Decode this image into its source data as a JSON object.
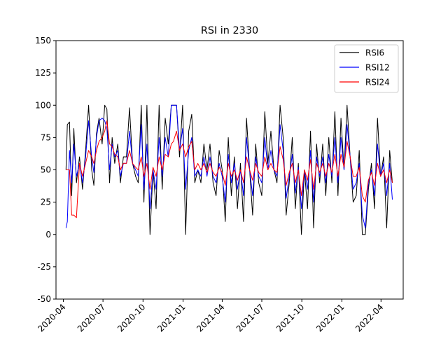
{
  "chart_data": {
    "type": "line",
    "title": "RSI in 2330",
    "xlabel": "",
    "ylabel": "",
    "ylim": [
      -50,
      150
    ],
    "xlim": [
      "2020-03-15",
      "2022-05-22"
    ],
    "yticks": [
      -50,
      -25,
      0,
      25,
      50,
      75,
      100,
      125,
      150
    ],
    "xticks": [
      {
        "date": "2020-04-01",
        "label": "2020-04"
      },
      {
        "date": "2020-07-01",
        "label": "2020-07"
      },
      {
        "date": "2020-10-01",
        "label": "2020-10"
      },
      {
        "date": "2021-01-01",
        "label": "2021-01"
      },
      {
        "date": "2021-04-01",
        "label": "2021-04"
      },
      {
        "date": "2021-07-01",
        "label": "2021-07"
      },
      {
        "date": "2021-10-01",
        "label": "2021-10"
      },
      {
        "date": "2022-01-01",
        "label": "2022-01"
      },
      {
        "date": "2022-04-01",
        "label": "2022-04"
      }
    ],
    "legend_position": "top-right",
    "grid": false,
    "series": [
      {
        "name": "RSI6",
        "color": "#000000",
        "x": [
          "2020-04-07",
          "2020-04-10",
          "2020-04-15",
          "2020-04-20",
          "2020-04-25",
          "2020-05-01",
          "2020-05-08",
          "2020-05-15",
          "2020-05-22",
          "2020-05-29",
          "2020-06-05",
          "2020-06-10",
          "2020-06-16",
          "2020-06-22",
          "2020-06-29",
          "2020-07-05",
          "2020-07-10",
          "2020-07-16",
          "2020-07-22",
          "2020-07-28",
          "2020-08-04",
          "2020-08-10",
          "2020-08-17",
          "2020-08-24",
          "2020-08-31",
          "2020-09-07",
          "2020-09-14",
          "2020-09-20",
          "2020-09-27",
          "2020-10-03",
          "2020-10-10",
          "2020-10-17",
          "2020-10-24",
          "2020-10-31",
          "2020-11-07",
          "2020-11-14",
          "2020-11-21",
          "2020-11-28",
          "2020-12-05",
          "2020-12-10",
          "2020-12-17",
          "2020-12-24",
          "2020-12-31",
          "2021-01-07",
          "2021-01-14",
          "2021-01-21",
          "2021-01-28",
          "2021-02-04",
          "2021-02-11",
          "2021-02-18",
          "2021-02-25",
          "2021-03-04",
          "2021-03-11",
          "2021-03-18",
          "2021-03-25",
          "2021-04-01",
          "2021-04-08",
          "2021-04-15",
          "2021-04-22",
          "2021-04-29",
          "2021-05-06",
          "2021-05-13",
          "2021-05-20",
          "2021-05-27",
          "2021-06-03",
          "2021-06-10",
          "2021-06-17",
          "2021-06-24",
          "2021-07-01",
          "2021-07-08",
          "2021-07-15",
          "2021-07-22",
          "2021-07-29",
          "2021-08-05",
          "2021-08-12",
          "2021-08-19",
          "2021-08-26",
          "2021-09-02",
          "2021-09-09",
          "2021-09-16",
          "2021-09-23",
          "2021-09-30",
          "2021-10-07",
          "2021-10-14",
          "2021-10-21",
          "2021-10-28",
          "2021-11-04",
          "2021-11-11",
          "2021-11-18",
          "2021-11-25",
          "2021-12-02",
          "2021-12-09",
          "2021-12-16",
          "2021-12-23",
          "2021-12-30",
          "2022-01-06",
          "2022-01-13",
          "2022-01-20",
          "2022-01-27",
          "2022-02-03",
          "2022-02-10",
          "2022-02-17",
          "2022-02-24",
          "2022-03-03",
          "2022-03-10",
          "2022-03-17",
          "2022-03-24",
          "2022-03-31",
          "2022-04-07",
          "2022-04-14",
          "2022-04-21",
          "2022-04-27"
        ],
        "values": [
          50,
          85,
          87,
          30,
          82,
          40,
          60,
          35,
          65,
          100,
          50,
          38,
          78,
          90,
          70,
          100,
          97,
          40,
          75,
          55,
          70,
          40,
          60,
          60,
          98,
          55,
          45,
          40,
          100,
          25,
          100,
          0,
          50,
          20,
          100,
          35,
          90,
          70,
          100,
          100,
          100,
          60,
          100,
          0,
          80,
          93,
          40,
          50,
          40,
          70,
          50,
          70,
          40,
          30,
          65,
          50,
          10,
          75,
          30,
          60,
          20,
          55,
          10,
          90,
          50,
          15,
          70,
          40,
          30,
          95,
          55,
          80,
          50,
          40,
          100,
          75,
          15,
          40,
          75,
          20,
          55,
          0,
          50,
          20,
          80,
          5,
          70,
          40,
          70,
          30,
          75,
          40,
          95,
          30,
          90,
          50,
          100,
          60,
          25,
          30,
          65,
          0,
          0,
          35,
          55,
          20,
          90,
          45,
          60,
          5,
          65,
          40
        ]
      },
      {
        "name": "RSI12",
        "color": "#0000ff",
        "x": [
          "2020-04-07",
          "2020-04-10",
          "2020-04-15",
          "2020-04-20",
          "2020-04-25",
          "2020-05-01",
          "2020-05-08",
          "2020-05-15",
          "2020-05-22",
          "2020-05-29",
          "2020-06-05",
          "2020-06-10",
          "2020-06-16",
          "2020-06-22",
          "2020-06-29",
          "2020-07-05",
          "2020-07-10",
          "2020-07-16",
          "2020-07-22",
          "2020-07-28",
          "2020-08-04",
          "2020-08-10",
          "2020-08-17",
          "2020-08-24",
          "2020-08-31",
          "2020-09-07",
          "2020-09-14",
          "2020-09-20",
          "2020-09-27",
          "2020-10-03",
          "2020-10-10",
          "2020-10-17",
          "2020-10-24",
          "2020-10-31",
          "2020-11-07",
          "2020-11-14",
          "2020-11-21",
          "2020-11-28",
          "2020-12-05",
          "2020-12-10",
          "2020-12-17",
          "2020-12-24",
          "2020-12-31",
          "2021-01-07",
          "2021-01-14",
          "2021-01-21",
          "2021-01-28",
          "2021-02-04",
          "2021-02-11",
          "2021-02-18",
          "2021-02-25",
          "2021-03-04",
          "2021-03-11",
          "2021-03-18",
          "2021-03-25",
          "2021-04-01",
          "2021-04-08",
          "2021-04-15",
          "2021-04-22",
          "2021-04-29",
          "2021-05-06",
          "2021-05-13",
          "2021-05-20",
          "2021-05-27",
          "2021-06-03",
          "2021-06-10",
          "2021-06-17",
          "2021-06-24",
          "2021-07-01",
          "2021-07-08",
          "2021-07-15",
          "2021-07-22",
          "2021-07-29",
          "2021-08-05",
          "2021-08-12",
          "2021-08-19",
          "2021-08-26",
          "2021-09-02",
          "2021-09-09",
          "2021-09-16",
          "2021-09-23",
          "2021-09-30",
          "2021-10-07",
          "2021-10-14",
          "2021-10-21",
          "2021-10-28",
          "2021-11-04",
          "2021-11-11",
          "2021-11-18",
          "2021-11-25",
          "2021-12-02",
          "2021-12-09",
          "2021-12-16",
          "2021-12-23",
          "2021-12-30",
          "2022-01-06",
          "2022-01-13",
          "2022-01-20",
          "2022-01-27",
          "2022-02-03",
          "2022-02-10",
          "2022-02-17",
          "2022-02-24",
          "2022-03-03",
          "2022-03-10",
          "2022-03-17",
          "2022-03-24",
          "2022-03-31",
          "2022-04-07",
          "2022-04-14",
          "2022-04-21",
          "2022-04-27"
        ],
        "values": [
          5,
          10,
          65,
          40,
          70,
          45,
          55,
          40,
          60,
          88,
          60,
          48,
          75,
          88,
          90,
          88,
          82,
          50,
          70,
          60,
          65,
          45,
          55,
          55,
          80,
          55,
          50,
          45,
          85,
          35,
          70,
          20,
          50,
          35,
          75,
          45,
          75,
          60,
          100,
          100,
          100,
          65,
          82,
          35,
          65,
          75,
          45,
          50,
          45,
          60,
          45,
          60,
          45,
          40,
          55,
          45,
          25,
          62,
          40,
          55,
          35,
          50,
          30,
          75,
          50,
          30,
          60,
          45,
          40,
          75,
          50,
          65,
          50,
          45,
          85,
          65,
          28,
          45,
          62,
          32,
          52,
          20,
          50,
          35,
          65,
          25,
          60,
          45,
          60,
          40,
          62,
          45,
          75,
          40,
          75,
          50,
          85,
          60,
          35,
          40,
          55,
          15,
          5,
          40,
          50,
          30,
          70,
          45,
          55,
          30,
          55,
          27
        ]
      },
      {
        "name": "RSI24",
        "color": "#ff0000",
        "x": [
          "2020-04-07",
          "2020-04-10",
          "2020-04-15",
          "2020-04-20",
          "2020-04-25",
          "2020-05-01",
          "2020-05-08",
          "2020-05-15",
          "2020-05-22",
          "2020-05-29",
          "2020-06-05",
          "2020-06-10",
          "2020-06-16",
          "2020-06-22",
          "2020-06-29",
          "2020-07-05",
          "2020-07-10",
          "2020-07-16",
          "2020-07-22",
          "2020-07-28",
          "2020-08-04",
          "2020-08-10",
          "2020-08-17",
          "2020-08-24",
          "2020-08-31",
          "2020-09-07",
          "2020-09-14",
          "2020-09-20",
          "2020-09-27",
          "2020-10-03",
          "2020-10-10",
          "2020-10-17",
          "2020-10-24",
          "2020-10-31",
          "2020-11-07",
          "2020-11-14",
          "2020-11-21",
          "2020-11-28",
          "2020-12-05",
          "2020-12-10",
          "2020-12-17",
          "2020-12-24",
          "2020-12-31",
          "2021-01-07",
          "2021-01-14",
          "2021-01-21",
          "2021-01-28",
          "2021-02-04",
          "2021-02-11",
          "2021-02-18",
          "2021-02-25",
          "2021-03-04",
          "2021-03-11",
          "2021-03-18",
          "2021-03-25",
          "2021-04-01",
          "2021-04-08",
          "2021-04-15",
          "2021-04-22",
          "2021-04-29",
          "2021-05-06",
          "2021-05-13",
          "2021-05-20",
          "2021-05-27",
          "2021-06-03",
          "2021-06-10",
          "2021-06-17",
          "2021-06-24",
          "2021-07-01",
          "2021-07-08",
          "2021-07-15",
          "2021-07-22",
          "2021-07-29",
          "2021-08-05",
          "2021-08-12",
          "2021-08-19",
          "2021-08-26",
          "2021-09-02",
          "2021-09-09",
          "2021-09-16",
          "2021-09-23",
          "2021-09-30",
          "2021-10-07",
          "2021-10-14",
          "2021-10-21",
          "2021-10-28",
          "2021-11-04",
          "2021-11-11",
          "2021-11-18",
          "2021-11-25",
          "2021-12-02",
          "2021-12-09",
          "2021-12-16",
          "2021-12-23",
          "2021-12-30",
          "2022-01-06",
          "2022-01-13",
          "2022-01-20",
          "2022-01-27",
          "2022-02-03",
          "2022-02-10",
          "2022-02-17",
          "2022-02-24",
          "2022-03-03",
          "2022-03-10",
          "2022-03-17",
          "2022-03-24",
          "2022-03-31",
          "2022-04-07",
          "2022-04-14",
          "2022-04-21",
          "2022-04-27"
        ],
        "values": [
          50,
          50,
          50,
          15,
          15,
          13,
          55,
          45,
          55,
          65,
          60,
          55,
          65,
          72,
          75,
          80,
          88,
          70,
          68,
          62,
          60,
          50,
          55,
          55,
          65,
          55,
          52,
          50,
          60,
          45,
          55,
          35,
          52,
          45,
          60,
          50,
          62,
          60,
          70,
          72,
          80,
          65,
          70,
          60,
          68,
          72,
          50,
          55,
          50,
          55,
          48,
          55,
          48,
          45,
          52,
          48,
          38,
          55,
          45,
          50,
          42,
          50,
          40,
          60,
          50,
          42,
          55,
          48,
          45,
          60,
          50,
          55,
          50,
          48,
          68,
          58,
          38,
          48,
          55,
          40,
          50,
          30,
          50,
          42,
          58,
          35,
          55,
          48,
          55,
          45,
          55,
          48,
          62,
          45,
          62,
          52,
          72,
          60,
          45,
          45,
          52,
          30,
          25,
          42,
          48,
          38,
          55,
          45,
          50,
          40,
          50,
          40
        ]
      }
    ]
  }
}
